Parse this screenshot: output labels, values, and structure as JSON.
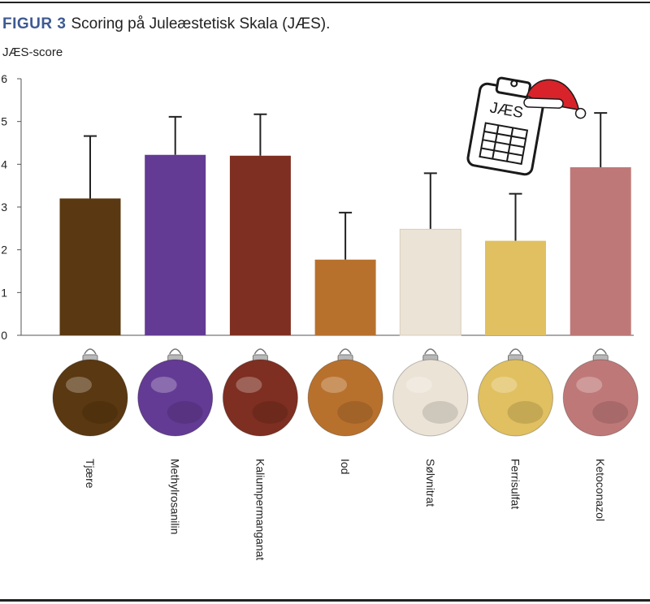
{
  "figure": {
    "label": "FIGUR 3",
    "caption": "Scoring på Juleæstetisk Skala (JÆS)."
  },
  "icon": {
    "name": "clipboard-santa-hat-icon",
    "text": "JÆS"
  },
  "chart_data": {
    "type": "bar",
    "title": "Scoring på Juleæstetisk Skala (JÆS).",
    "ylabel": "JÆS-score",
    "xlabel": "",
    "ylim": [
      0,
      6
    ],
    "yticks": [
      0,
      1,
      2,
      3,
      4,
      5,
      6
    ],
    "grid": false,
    "error_bars": true,
    "categories": [
      "Tjære",
      "Methylrosanilin",
      "Kaliumpermanganat",
      "Iod",
      "Sølvnitrat",
      "Ferrisulfat",
      "Ketoconazol"
    ],
    "values": [
      3.2,
      4.22,
      4.2,
      1.77,
      2.48,
      2.21,
      3.93
    ],
    "error_upper": [
      4.66,
      5.11,
      5.17,
      2.87,
      3.79,
      3.31,
      5.2
    ],
    "colors": [
      "#5a3811",
      "#633b94",
      "#7e2f21",
      "#b8712d",
      "#ebe3d6",
      "#e0c060",
      "#bf7878"
    ]
  }
}
